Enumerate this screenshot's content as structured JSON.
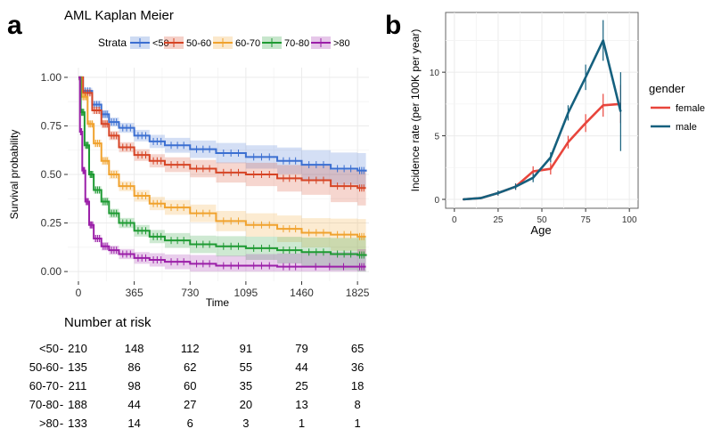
{
  "panel_a_letter": "a",
  "panel_b_letter": "b",
  "chart_data": [
    {
      "type": "line",
      "subtype": "step-survival",
      "title": "AML Kaplan Meier",
      "legend_title": "Strata",
      "xlabel": "Time",
      "ylabel": "Survival probability",
      "xlim": [
        -70,
        1900
      ],
      "ylim": [
        -0.05,
        1.05
      ],
      "xticks": [
        0,
        365,
        730,
        1095,
        1460,
        1825
      ],
      "yticks": [
        0.0,
        0.25,
        0.5,
        0.75,
        1.0
      ],
      "ytick_labels": [
        "0.00",
        "0.25",
        "0.50",
        "0.75",
        "1.00"
      ],
      "series": [
        {
          "name": "<50",
          "color": "#3b6fd1",
          "x": [
            0,
            30,
            90,
            150,
            200,
            265,
            365,
            465,
            565,
            730,
            900,
            1095,
            1300,
            1460,
            1650,
            1825,
            1880
          ],
          "y": [
            1.0,
            0.93,
            0.86,
            0.81,
            0.77,
            0.74,
            0.7,
            0.67,
            0.65,
            0.63,
            0.61,
            0.59,
            0.57,
            0.55,
            0.53,
            0.52,
            0.515
          ]
        },
        {
          "name": "50-60",
          "color": "#d64425",
          "x": [
            0,
            30,
            90,
            150,
            200,
            265,
            365,
            465,
            565,
            730,
            900,
            1095,
            1300,
            1460,
            1650,
            1825,
            1880
          ],
          "y": [
            1.0,
            0.92,
            0.83,
            0.76,
            0.7,
            0.64,
            0.6,
            0.57,
            0.55,
            0.53,
            0.51,
            0.5,
            0.48,
            0.47,
            0.44,
            0.43,
            0.43
          ]
        },
        {
          "name": "60-70",
          "color": "#f0a22e",
          "x": [
            0,
            20,
            60,
            100,
            150,
            200,
            265,
            365,
            465,
            565,
            730,
            900,
            1095,
            1300,
            1460,
            1650,
            1825,
            1880
          ],
          "y": [
            1.0,
            0.9,
            0.76,
            0.66,
            0.57,
            0.5,
            0.44,
            0.39,
            0.35,
            0.33,
            0.3,
            0.26,
            0.24,
            0.22,
            0.2,
            0.19,
            0.18,
            0.18
          ]
        },
        {
          "name": "70-80",
          "color": "#1e9a33",
          "x": [
            0,
            15,
            40,
            70,
            100,
            150,
            200,
            265,
            365,
            465,
            565,
            730,
            900,
            1095,
            1300,
            1460,
            1650,
            1825,
            1880
          ],
          "y": [
            1.0,
            0.82,
            0.65,
            0.5,
            0.42,
            0.36,
            0.3,
            0.25,
            0.21,
            0.18,
            0.16,
            0.14,
            0.13,
            0.12,
            0.11,
            0.1,
            0.09,
            0.085,
            0.08
          ]
        },
        {
          "name": ">80",
          "color": "#9b1fa8",
          "x": [
            0,
            10,
            25,
            45,
            70,
            100,
            150,
            200,
            265,
            365,
            465,
            565,
            730,
            900,
            1095,
            1300,
            1460,
            1825,
            1880
          ],
          "y": [
            1.0,
            0.72,
            0.52,
            0.36,
            0.24,
            0.17,
            0.13,
            0.11,
            0.09,
            0.07,
            0.06,
            0.05,
            0.04,
            0.03,
            0.03,
            0.025,
            0.025,
            0.025,
            0.025
          ]
        }
      ]
    },
    {
      "type": "line",
      "xlabel": "Age",
      "ylabel": "Incidence rate (per 100K per year)",
      "legend_title": "gender",
      "xlim": [
        0,
        100
      ],
      "ylim": [
        -0.7,
        14.7
      ],
      "xticks": [
        0,
        25,
        50,
        75,
        100
      ],
      "yticks": [
        0,
        5,
        10
      ],
      "series": [
        {
          "name": "female",
          "color": "#e8453c",
          "x": [
            5,
            15,
            25,
            35,
            45,
            55,
            65,
            75,
            85,
            95
          ],
          "y": [
            0.0,
            0.1,
            0.5,
            1.0,
            2.2,
            2.4,
            4.5,
            6.0,
            7.4,
            7.5
          ],
          "err": [
            0.05,
            0.05,
            0.2,
            0.25,
            0.4,
            0.45,
            0.5,
            0.7,
            0.9,
            1.5
          ]
        },
        {
          "name": "male",
          "color": "#15607e",
          "x": [
            5,
            15,
            25,
            35,
            45,
            55,
            65,
            75,
            85,
            95
          ],
          "y": [
            0.0,
            0.1,
            0.5,
            1.0,
            1.7,
            3.3,
            6.8,
            9.6,
            12.5,
            6.9
          ],
          "err": [
            0.05,
            0.05,
            0.2,
            0.25,
            0.35,
            0.4,
            0.6,
            1.0,
            1.6,
            3.1
          ]
        }
      ]
    }
  ],
  "risk_table": {
    "title": "Number at risk",
    "rows": [
      {
        "label": "<50",
        "color": "#3b6fd1",
        "values": [
          "210",
          "148",
          "112",
          "91",
          "79",
          "65"
        ]
      },
      {
        "label": "50-60",
        "color": "#d64425",
        "values": [
          "135",
          "86",
          "62",
          "55",
          "44",
          "36"
        ]
      },
      {
        "label": "60-70",
        "color": "#f0a22e",
        "values": [
          "211",
          "98",
          "60",
          "35",
          "25",
          "18"
        ]
      },
      {
        "label": "70-80",
        "color": "#1e9a33",
        "values": [
          "188",
          "44",
          "27",
          "20",
          "13",
          "8"
        ]
      },
      {
        "label": ">80",
        "color": "#9b1fa8",
        "values": [
          "133",
          "14",
          "6",
          "3",
          "1",
          "1"
        ]
      }
    ]
  }
}
